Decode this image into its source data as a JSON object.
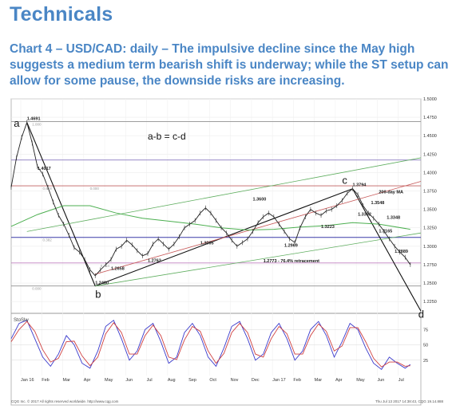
{
  "page": {
    "title": "Technicals",
    "caption": "Chart 4 – USD/CAD: daily – The impulsive decline since the May high suggests a medium term bearish shift is underway; while the ST setup can allow for some pause, the downside risks are increasing."
  },
  "footer": {
    "left": "CQG Inc. © 2017 All rights reserved worldwide. http://www.cqg.com",
    "right": "Thu Jul 13 2017 14:38:43, CQG 19.14.888"
  },
  "chart_data": {
    "type": "line",
    "price_panel": {
      "ylim": [
        1.21,
        1.5
      ],
      "y_ticks": [
        "1.5000",
        "1.4750",
        "1.4500",
        "1.4250",
        "1.4000",
        "1.3750",
        "1.3500",
        "1.3250",
        "1.3000",
        "1.2750",
        "1.2500",
        "1.2250"
      ],
      "x_ticks": [
        "Jan 16",
        "Feb",
        "Mar",
        "Apr",
        "May",
        "Jun",
        "Jul",
        "Aug",
        "Sep",
        "Oct",
        "Nov",
        "Dec",
        "Jan 17",
        "Feb",
        "Mar",
        "Apr",
        "May",
        "Jun",
        "Jul"
      ],
      "price_series": [
        [
          0,
          1.38
        ],
        [
          2,
          1.42
        ],
        [
          4,
          1.448
        ],
        [
          6,
          1.468
        ],
        [
          8,
          1.44
        ],
        [
          10,
          1.408
        ],
        [
          12,
          1.398
        ],
        [
          14,
          1.38
        ],
        [
          16,
          1.36
        ],
        [
          18,
          1.342
        ],
        [
          20,
          1.33
        ],
        [
          22,
          1.315
        ],
        [
          24,
          1.298
        ],
        [
          26,
          1.292
        ],
        [
          28,
          1.282
        ],
        [
          30,
          1.268
        ],
        [
          32,
          1.26
        ],
        [
          34,
          1.268
        ],
        [
          36,
          1.275
        ],
        [
          38,
          1.282
        ],
        [
          40,
          1.296
        ],
        [
          42,
          1.3
        ],
        [
          44,
          1.308
        ],
        [
          46,
          1.302
        ],
        [
          48,
          1.294
        ],
        [
          50,
          1.287
        ],
        [
          52,
          1.29
        ],
        [
          54,
          1.303
        ],
        [
          56,
          1.31
        ],
        [
          58,
          1.303
        ],
        [
          60,
          1.296
        ],
        [
          62,
          1.303
        ],
        [
          64,
          1.313
        ],
        [
          66,
          1.325
        ],
        [
          68,
          1.33
        ],
        [
          70,
          1.335
        ],
        [
          72,
          1.345
        ],
        [
          74,
          1.352
        ],
        [
          76,
          1.345
        ],
        [
          78,
          1.335
        ],
        [
          80,
          1.325
        ],
        [
          82,
          1.318
        ],
        [
          84,
          1.308
        ],
        [
          86,
          1.3
        ],
        [
          88,
          1.305
        ],
        [
          90,
          1.31
        ],
        [
          92,
          1.32
        ],
        [
          94,
          1.332
        ],
        [
          96,
          1.34
        ],
        [
          98,
          1.345
        ],
        [
          100,
          1.34
        ],
        [
          102,
          1.33
        ],
        [
          104,
          1.32
        ],
        [
          106,
          1.31
        ],
        [
          108,
          1.305
        ],
        [
          110,
          1.325
        ],
        [
          112,
          1.34
        ],
        [
          114,
          1.35
        ],
        [
          116,
          1.345
        ],
        [
          118,
          1.342
        ],
        [
          120,
          1.348
        ],
        [
          122,
          1.35
        ],
        [
          124,
          1.355
        ],
        [
          126,
          1.362
        ],
        [
          128,
          1.372
        ],
        [
          130,
          1.378
        ],
        [
          132,
          1.37
        ],
        [
          134,
          1.355
        ],
        [
          136,
          1.345
        ],
        [
          138,
          1.338
        ],
        [
          140,
          1.33
        ],
        [
          142,
          1.32
        ],
        [
          144,
          1.31
        ],
        [
          146,
          1.3
        ],
        [
          148,
          1.292
        ],
        [
          150,
          1.285
        ],
        [
          152,
          1.275
        ]
      ],
      "ma_200": [
        [
          0,
          1.327
        ],
        [
          10,
          1.343
        ],
        [
          20,
          1.355
        ],
        [
          30,
          1.355
        ],
        [
          40,
          1.345
        ],
        [
          50,
          1.338
        ],
        [
          60,
          1.334
        ],
        [
          70,
          1.33
        ],
        [
          80,
          1.325
        ],
        [
          90,
          1.322
        ],
        [
          100,
          1.323
        ],
        [
          110,
          1.326
        ],
        [
          120,
          1.328
        ],
        [
          130,
          1.332
        ],
        [
          140,
          1.33
        ],
        [
          152,
          1.323
        ]
      ],
      "trendlines": [
        {
          "from": [
            6,
            1.468
          ],
          "to": [
            32,
            1.246
          ]
        },
        {
          "from": [
            32,
            1.246
          ],
          "to": [
            130,
            1.378
          ]
        },
        {
          "from": [
            130,
            1.378
          ],
          "to": [
            156,
            1.212
          ]
        },
        {
          "from": [
            32,
            1.262
          ],
          "to": [
            156,
            1.388
          ]
        },
        {
          "from": [
            6,
            1.32
          ],
          "to": [
            156,
            1.42
          ]
        },
        {
          "from": [
            32,
            1.246
          ],
          "to": [
            156,
            1.318
          ]
        }
      ],
      "horizontal_lines": [
        {
          "y": 1.4691,
          "color": "#909090"
        },
        {
          "y": 1.417,
          "color": "#8a7ac0"
        },
        {
          "y": 1.382,
          "color": "#c06060"
        },
        {
          "y": 1.312,
          "color": "#3a3aa8"
        },
        {
          "y": 1.2773,
          "color": "#c080c0"
        },
        {
          "y": 1.246,
          "color": "#909090"
        }
      ],
      "fib_labels": [
        {
          "text": "1.000",
          "x": 8,
          "y": 1.4691
        },
        {
          "text": "0.000",
          "x": 30,
          "y": 1.382
        },
        {
          "text": "0.618",
          "x": 12,
          "y": 1.382
        },
        {
          "text": "0.382",
          "x": 12,
          "y": 1.312
        },
        {
          "text": "0.764",
          "x": 34,
          "y": 1.2773
        },
        {
          "text": "0.000",
          "x": 8,
          "y": 1.246
        }
      ],
      "price_labels": [
        {
          "text": "1.4691",
          "x": 6,
          "y": 1.4691
        },
        {
          "text": "1.4017",
          "x": 10,
          "y": 1.4017
        },
        {
          "text": "1.2460",
          "x": 32,
          "y": 1.246
        },
        {
          "text": "1.2658",
          "x": 38,
          "y": 1.2658
        },
        {
          "text": "1.2763",
          "x": 52,
          "y": 1.2763
        },
        {
          "text": "1.3005",
          "x": 72,
          "y": 1.3005
        },
        {
          "text": "1.3600",
          "x": 92,
          "y": 1.36
        },
        {
          "text": "1.2969",
          "x": 104,
          "y": 1.2969
        },
        {
          "text": "1.3223",
          "x": 118,
          "y": 1.3223
        },
        {
          "text": "1.3794",
          "x": 130,
          "y": 1.3794
        },
        {
          "text": "1.3548",
          "x": 137,
          "y": 1.3548
        },
        {
          "text": "1.3348",
          "x": 143,
          "y": 1.3348
        },
        {
          "text": "1.3392",
          "x": 132,
          "y": 1.3392
        },
        {
          "text": "1.3165",
          "x": 140,
          "y": 1.3165
        },
        {
          "text": "1.2889",
          "x": 146,
          "y": 1.2889
        }
      ],
      "annotations": [
        {
          "text": "a",
          "x": 1,
          "y": 1.462
        },
        {
          "text": "b",
          "x": 32,
          "y": 1.23
        },
        {
          "text": "c",
          "x": 126,
          "y": 1.385
        },
        {
          "text": "d",
          "x": 155,
          "y": 1.203
        },
        {
          "text": "a-b = c-d",
          "x": 52,
          "y": 1.445
        },
        {
          "text": "200-day MA",
          "x": 140,
          "y": 1.372
        },
        {
          "text": "1.2773 - 76.4% retracement",
          "x": 96,
          "y": 1.2783
        }
      ]
    },
    "oscillator_panel": {
      "label": "StoSlw",
      "ylim": [
        0,
        100
      ],
      "y_ticks": [
        "75",
        "50",
        "25"
      ],
      "k_series": [
        [
          0,
          60
        ],
        [
          3,
          85
        ],
        [
          6,
          90
        ],
        [
          9,
          60
        ],
        [
          12,
          30
        ],
        [
          15,
          15
        ],
        [
          18,
          35
        ],
        [
          21,
          65
        ],
        [
          24,
          50
        ],
        [
          27,
          20
        ],
        [
          30,
          12
        ],
        [
          33,
          40
        ],
        [
          36,
          80
        ],
        [
          39,
          90
        ],
        [
          42,
          60
        ],
        [
          45,
          25
        ],
        [
          48,
          40
        ],
        [
          51,
          75
        ],
        [
          54,
          85
        ],
        [
          57,
          55
        ],
        [
          60,
          20
        ],
        [
          63,
          30
        ],
        [
          66,
          70
        ],
        [
          69,
          85
        ],
        [
          72,
          65
        ],
        [
          75,
          30
        ],
        [
          78,
          15
        ],
        [
          81,
          45
        ],
        [
          84,
          80
        ],
        [
          87,
          88
        ],
        [
          90,
          60
        ],
        [
          93,
          25
        ],
        [
          96,
          35
        ],
        [
          99,
          70
        ],
        [
          102,
          85
        ],
        [
          105,
          60
        ],
        [
          108,
          25
        ],
        [
          111,
          40
        ],
        [
          114,
          75
        ],
        [
          117,
          88
        ],
        [
          120,
          65
        ],
        [
          123,
          30
        ],
        [
          126,
          55
        ],
        [
          129,
          85
        ],
        [
          132,
          75
        ],
        [
          135,
          45
        ],
        [
          138,
          20
        ],
        [
          141,
          10
        ],
        [
          144,
          30
        ],
        [
          147,
          20
        ],
        [
          150,
          12
        ],
        [
          152,
          18
        ]
      ],
      "d_series": [
        [
          0,
          55
        ],
        [
          3,
          75
        ],
        [
          6,
          88
        ],
        [
          9,
          72
        ],
        [
          12,
          42
        ],
        [
          15,
          22
        ],
        [
          18,
          28
        ],
        [
          21,
          55
        ],
        [
          24,
          56
        ],
        [
          27,
          32
        ],
        [
          30,
          16
        ],
        [
          33,
          30
        ],
        [
          36,
          68
        ],
        [
          39,
          86
        ],
        [
          42,
          70
        ],
        [
          45,
          35
        ],
        [
          48,
          35
        ],
        [
          51,
          65
        ],
        [
          54,
          82
        ],
        [
          57,
          65
        ],
        [
          60,
          30
        ],
        [
          63,
          26
        ],
        [
          66,
          58
        ],
        [
          69,
          80
        ],
        [
          72,
          72
        ],
        [
          75,
          40
        ],
        [
          78,
          20
        ],
        [
          81,
          36
        ],
        [
          84,
          70
        ],
        [
          87,
          85
        ],
        [
          90,
          70
        ],
        [
          93,
          35
        ],
        [
          96,
          30
        ],
        [
          99,
          60
        ],
        [
          102,
          80
        ],
        [
          105,
          68
        ],
        [
          108,
          35
        ],
        [
          111,
          35
        ],
        [
          114,
          65
        ],
        [
          117,
          84
        ],
        [
          120,
          72
        ],
        [
          123,
          40
        ],
        [
          126,
          48
        ],
        [
          129,
          78
        ],
        [
          132,
          78
        ],
        [
          135,
          55
        ],
        [
          138,
          28
        ],
        [
          141,
          14
        ],
        [
          144,
          22
        ],
        [
          147,
          22
        ],
        [
          150,
          15
        ],
        [
          152,
          16
        ]
      ]
    }
  }
}
